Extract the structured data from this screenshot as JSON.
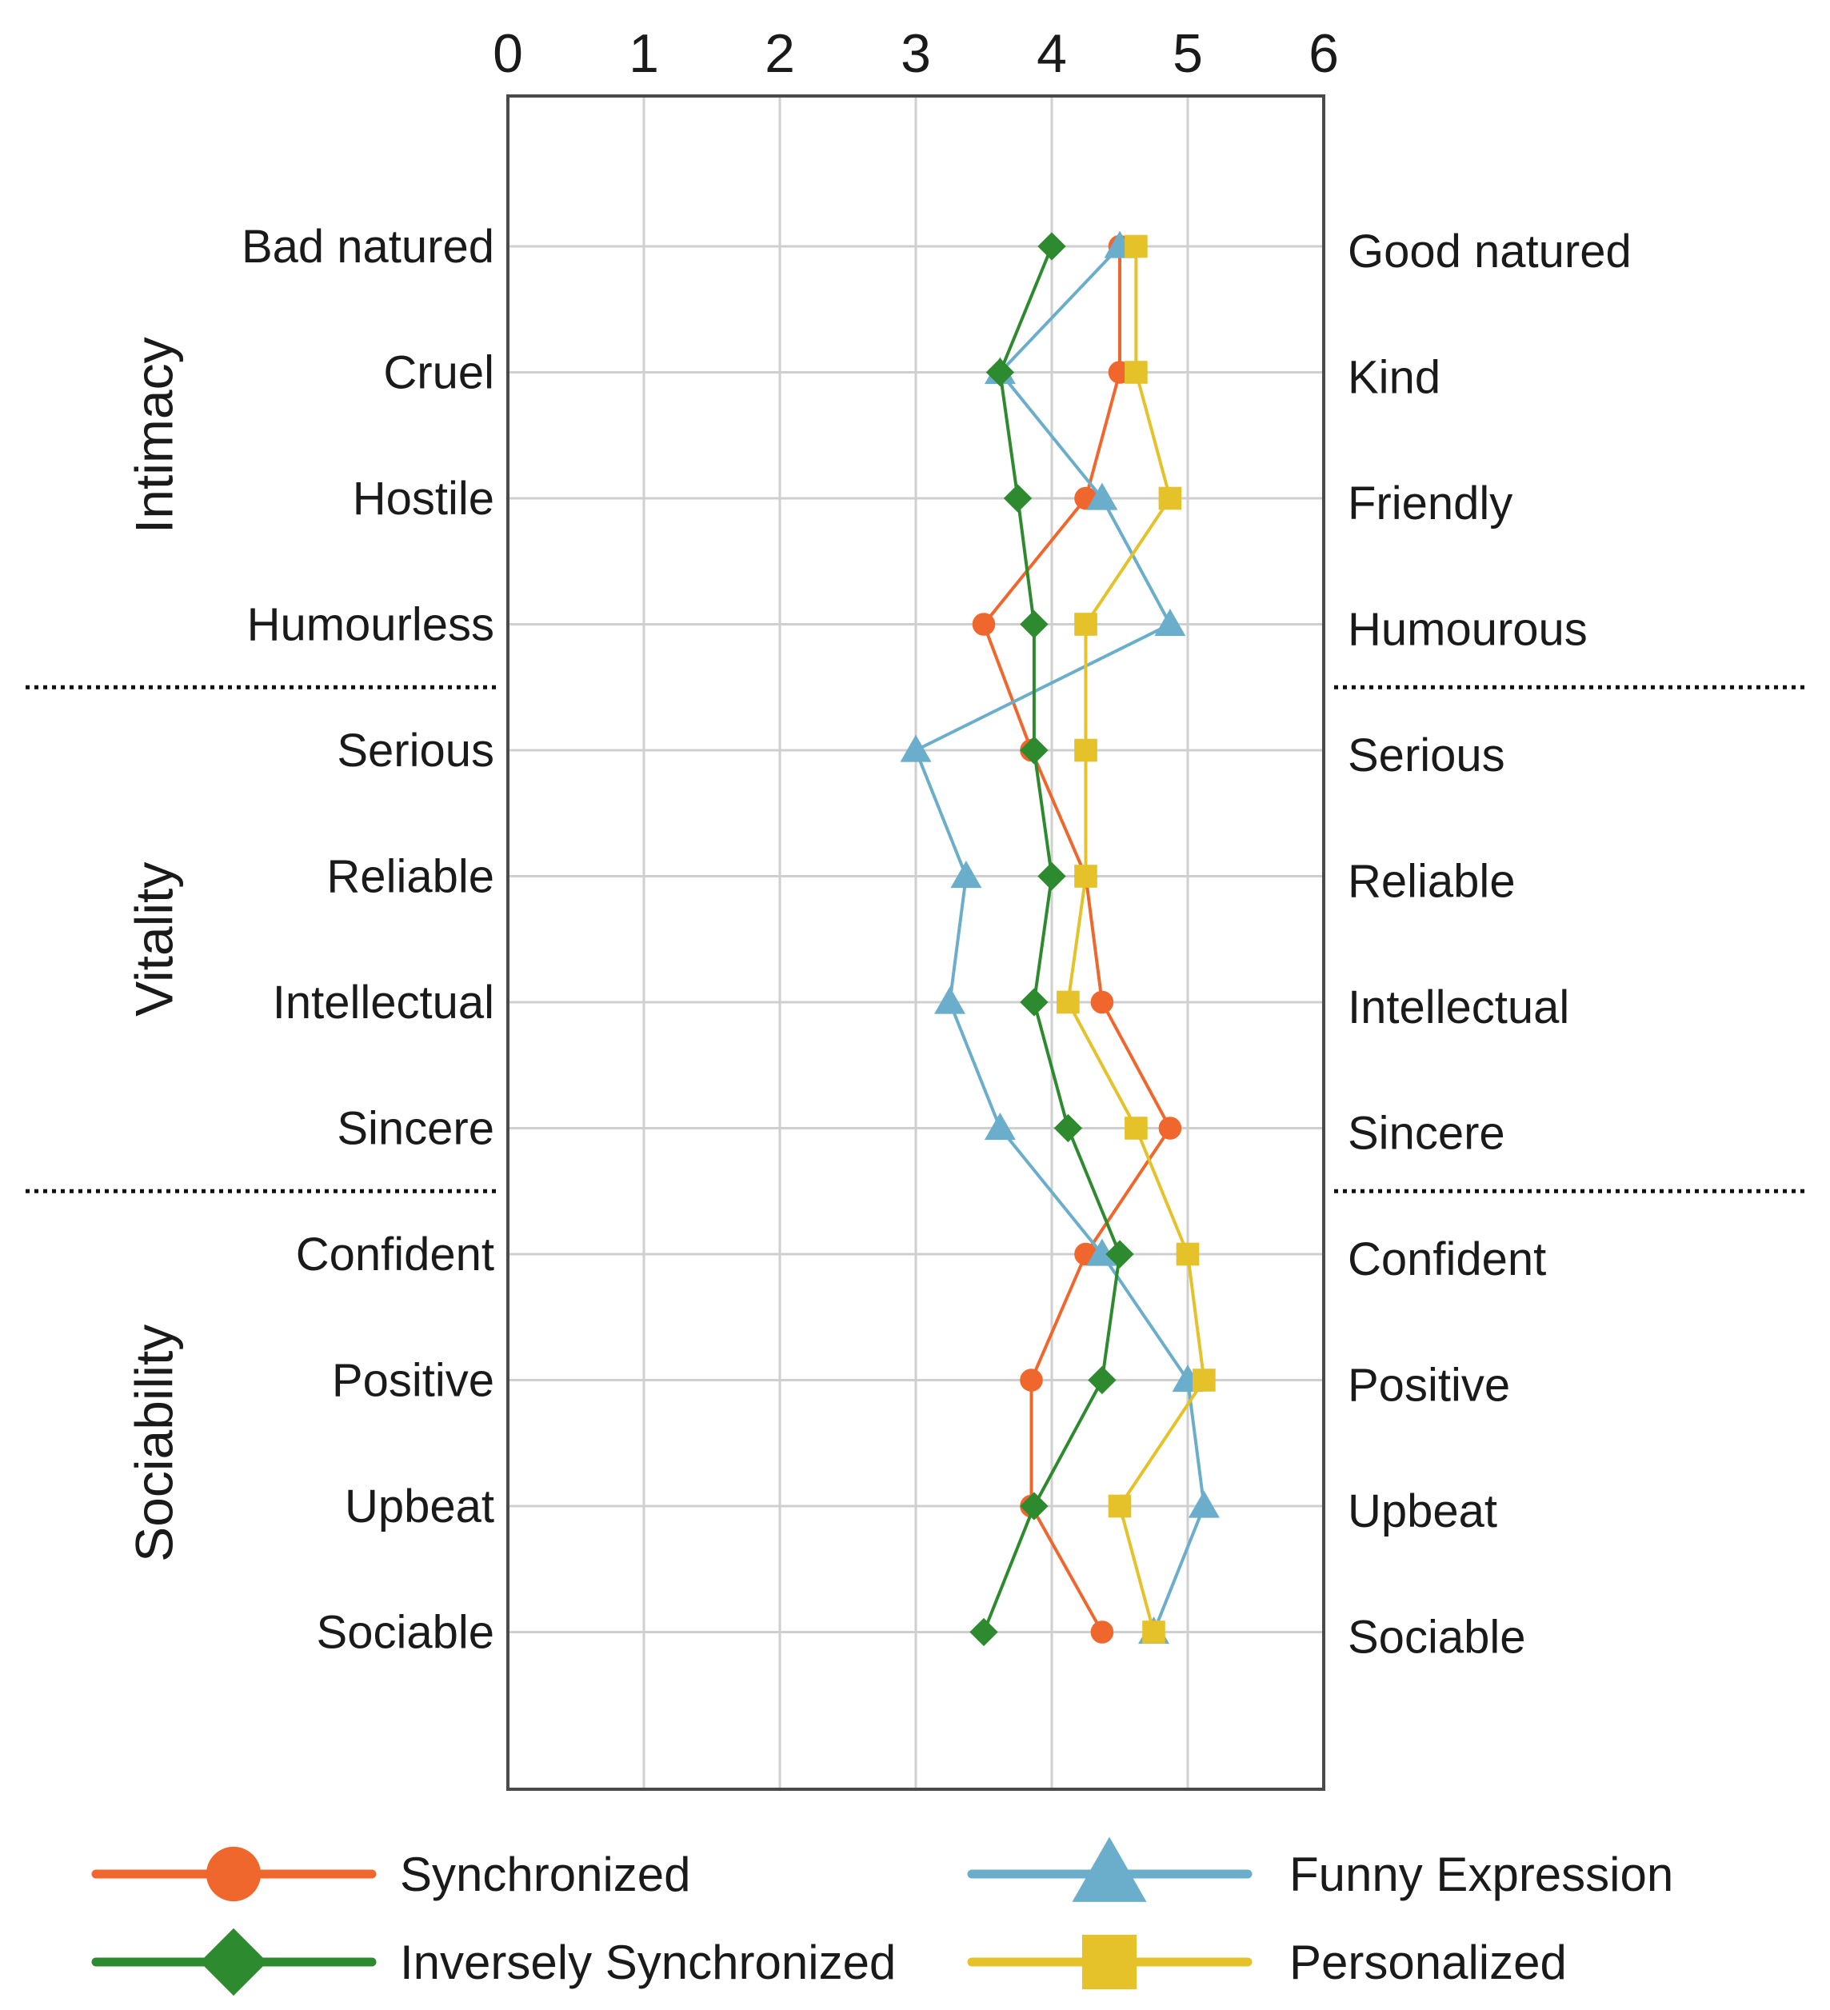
{
  "chart_data": {
    "type": "line",
    "orientation": "horizontal-profile",
    "xlim": [
      0,
      6
    ],
    "x_ticks": [
      "0",
      "1",
      "2",
      "3",
      "4",
      "5",
      "6"
    ],
    "grid": true,
    "legend_position": "bottom",
    "left_labels": [
      "Bad natured",
      "Cruel",
      "Hostile",
      "Humourless",
      "Serious",
      "Reliable",
      "Intellectual",
      "Sincere",
      "Confident",
      "Positive",
      "Upbeat",
      "Sociable"
    ],
    "right_labels": [
      "Good natured",
      "Kind",
      "Friendly",
      "Humourous",
      "Serious",
      "Reliable",
      "Intellectual",
      "Sincere",
      "Confident",
      "Positive",
      "Upbeat",
      "Sociable"
    ],
    "groups": [
      {
        "name": "Intimacy",
        "first": 0,
        "last": 3
      },
      {
        "name": "Vitality",
        "first": 4,
        "last": 7
      },
      {
        "name": "Sociability",
        "first": 8,
        "last": 11
      }
    ],
    "series": [
      {
        "name": "Synchronized",
        "marker": "circle",
        "color": "#F0672D",
        "values": [
          4.5,
          4.5,
          4.25,
          3.5,
          3.85,
          4.25,
          4.37,
          4.87,
          4.25,
          3.85,
          3.85,
          4.37
        ]
      },
      {
        "name": "Funny Expression",
        "marker": "triangle",
        "color": "#6AAECB",
        "values": [
          4.5,
          3.62,
          4.37,
          4.87,
          3.0,
          3.37,
          3.25,
          3.62,
          4.37,
          5.0,
          5.12,
          4.75
        ]
      },
      {
        "name": "Inversely Synchronized",
        "marker": "diamond",
        "color": "#2E8A2E",
        "values": [
          4.0,
          3.62,
          3.75,
          3.87,
          3.87,
          4.0,
          3.87,
          4.12,
          4.5,
          4.37,
          3.87,
          3.5
        ]
      },
      {
        "name": "Personalized",
        "marker": "square",
        "color": "#E5C12A",
        "values": [
          4.62,
          4.62,
          4.87,
          4.25,
          4.25,
          4.25,
          4.12,
          4.62,
          5.0,
          5.12,
          4.5,
          4.75
        ]
      }
    ]
  }
}
